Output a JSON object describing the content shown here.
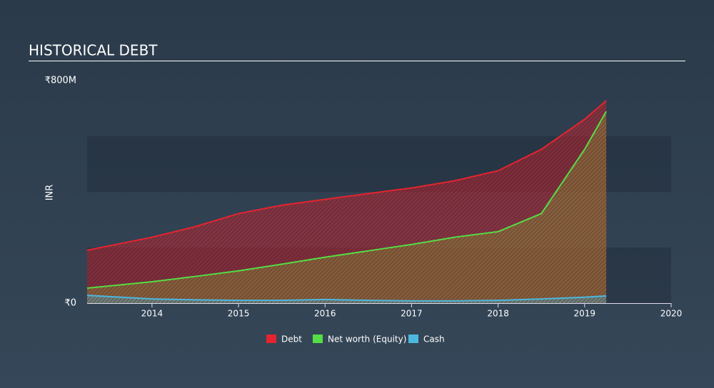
{
  "chart_data": {
    "type": "area",
    "title": "HISTORICAL DEBT",
    "ylabel": "INR",
    "x": [
      2013.25,
      2014,
      2014.5,
      2015,
      2015.5,
      2016,
      2016.5,
      2017,
      2017.5,
      2018,
      2018.5,
      2019,
      2019.25
    ],
    "series": [
      {
        "name": "Debt",
        "color": "#e5242f",
        "values": [
          190000000,
          237000000,
          275000000,
          322000000,
          352000000,
          373000000,
          394000000,
          414000000,
          440000000,
          476000000,
          553000000,
          661000000,
          728000000
        ]
      },
      {
        "name": "Net worth (Equity)",
        "color": "#55dd44",
        "values": [
          54000000,
          77000000,
          96000000,
          116000000,
          140000000,
          165000000,
          188000000,
          211000000,
          237000000,
          257000000,
          322000000,
          553000000,
          689000000
        ]
      },
      {
        "name": "Cash",
        "color": "#4cb8e0",
        "values": [
          28000000,
          15000000,
          12000000,
          10000000,
          10000000,
          13000000,
          10000000,
          8000000,
          8000000,
          10000000,
          15000000,
          21000000,
          26000000
        ]
      }
    ],
    "xlim": [
      2013.25,
      2020
    ],
    "xticks": [
      2014,
      2015,
      2016,
      2017,
      2018,
      2019,
      2020
    ],
    "ylim": [
      0,
      800000000
    ],
    "yticks": [
      {
        "value": 0,
        "label": "₹0"
      },
      {
        "value": 800000000,
        "label": "₹800M"
      }
    ],
    "grid": true,
    "legend": "bottom"
  }
}
